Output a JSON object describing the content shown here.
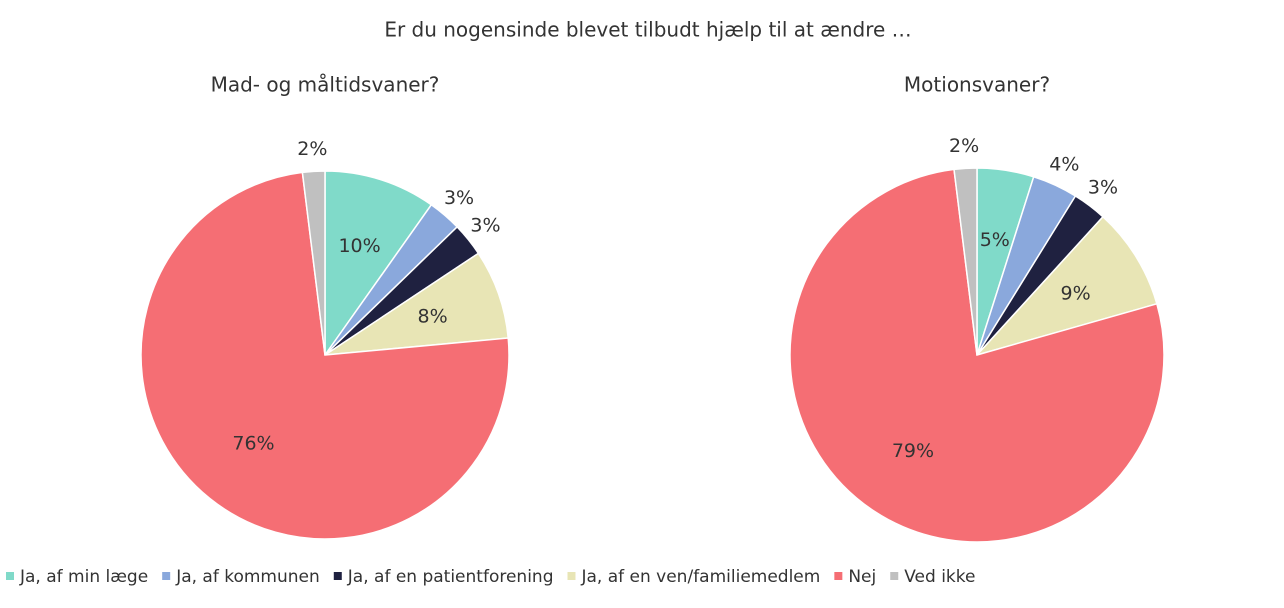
{
  "title": "Er du nogensinde blevet tilbudt hjælp til at ændre …",
  "categories": [
    "Ja, af min læge",
    "Ja, af kommunen",
    "Ja, af en patientforening",
    "Ja, af en ven/familiemedlem",
    "Nej",
    "Ved ikke"
  ],
  "colors": [
    "#80dac9",
    "#8aa8dc",
    "#1f2140",
    "#e8e5b5",
    "#f56e74",
    "#c0c0c0"
  ],
  "chart_data": [
    {
      "type": "pie",
      "title": "Mad- og måltidsvaner?",
      "values": [
        10,
        3,
        3,
        8,
        76,
        2
      ]
    },
    {
      "type": "pie",
      "title": "Motionsvaner?",
      "values": [
        5,
        4,
        3,
        9,
        79,
        2
      ]
    }
  ]
}
